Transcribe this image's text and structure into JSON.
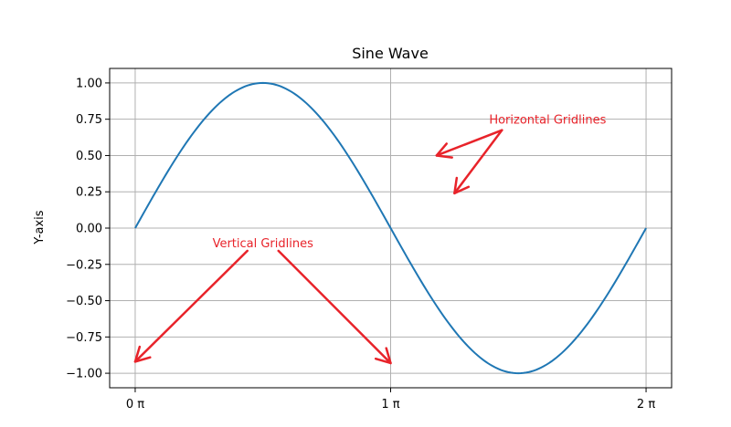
{
  "chart_data": {
    "type": "line",
    "title": "Sine Wave",
    "xlabel": "",
    "ylabel": "Y-axis",
    "xlim": [
      -0.1,
      2.1
    ],
    "ylim": [
      -1.1,
      1.1
    ],
    "grid": true,
    "x_unit": "π",
    "x_ticks": [
      {
        "value": 0,
        "label": "0 π"
      },
      {
        "value": 1,
        "label": "1 π"
      },
      {
        "value": 2,
        "label": "2 π"
      }
    ],
    "y_ticks": [
      {
        "value": 1.0,
        "label": "1.00"
      },
      {
        "value": 0.75,
        "label": "0.75"
      },
      {
        "value": 0.5,
        "label": "0.50"
      },
      {
        "value": 0.25,
        "label": "0.25"
      },
      {
        "value": 0.0,
        "label": "0.00"
      },
      {
        "value": -0.25,
        "label": "−0.25"
      },
      {
        "value": -0.5,
        "label": "−0.50"
      },
      {
        "value": -0.75,
        "label": "−0.75"
      },
      {
        "value": -1.0,
        "label": "−1.00"
      }
    ],
    "series": [
      {
        "color": "#1f77b4",
        "x": [
          0,
          0.125,
          0.25,
          0.375,
          0.5,
          0.625,
          0.75,
          0.875,
          1.0,
          1.125,
          1.25,
          1.375,
          1.5,
          1.625,
          1.75,
          1.875,
          2.0
        ],
        "y": [
          0.0,
          0.383,
          0.707,
          0.924,
          1.0,
          0.924,
          0.707,
          0.383,
          0.0,
          -0.383,
          -0.707,
          -0.924,
          -1.0,
          -0.924,
          -0.707,
          -0.383,
          0.0
        ]
      }
    ],
    "annotations": [
      {
        "text": "Horizontal Gridlines",
        "color": "#e8232a",
        "anchor": {
          "x": 1.4,
          "y": 0.75
        },
        "arrows_to": [
          {
            "x": 1.18,
            "y": 0.5
          },
          {
            "x": 1.25,
            "y": 0.24
          }
        ]
      },
      {
        "text": "Vertical Gridlines",
        "color": "#e8232a",
        "anchor": {
          "x": 0.5,
          "y": -0.1
        },
        "arrows_to": [
          {
            "x": 0.0,
            "y": -0.92
          },
          {
            "x": 1.0,
            "y": -0.93
          }
        ]
      }
    ]
  }
}
